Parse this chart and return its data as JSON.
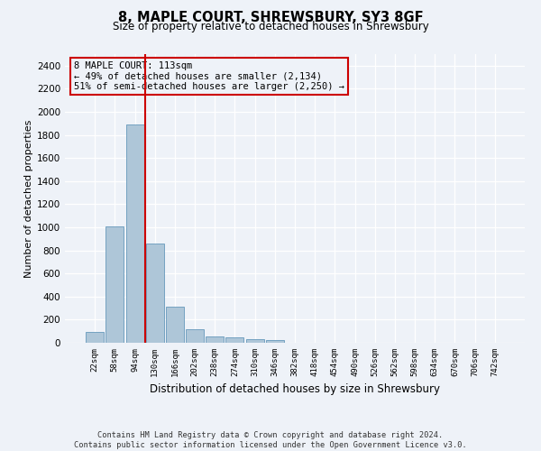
{
  "title": "8, MAPLE COURT, SHREWSBURY, SY3 8GF",
  "subtitle": "Size of property relative to detached houses in Shrewsbury",
  "xlabel": "Distribution of detached houses by size in Shrewsbury",
  "ylabel": "Number of detached properties",
  "bar_color": "#aec6d8",
  "bar_edge_color": "#6699bb",
  "background_color": "#eef2f8",
  "grid_color": "#ffffff",
  "tick_labels": [
    "22sqm",
    "58sqm",
    "94sqm",
    "130sqm",
    "166sqm",
    "202sqm",
    "238sqm",
    "274sqm",
    "310sqm",
    "346sqm",
    "382sqm",
    "418sqm",
    "454sqm",
    "490sqm",
    "526sqm",
    "562sqm",
    "598sqm",
    "634sqm",
    "670sqm",
    "706sqm",
    "742sqm"
  ],
  "bar_heights": [
    95,
    1010,
    1890,
    860,
    310,
    115,
    58,
    50,
    30,
    20,
    0,
    0,
    0,
    0,
    0,
    0,
    0,
    0,
    0,
    0,
    0
  ],
  "ylim": [
    0,
    2500
  ],
  "yticks": [
    0,
    200,
    400,
    600,
    800,
    1000,
    1200,
    1400,
    1600,
    1800,
    2000,
    2200,
    2400
  ],
  "vline_x": 2.52,
  "annotation_text": "8 MAPLE COURT: 113sqm\n← 49% of detached houses are smaller (2,134)\n51% of semi-detached houses are larger (2,250) →",
  "footer_line1": "Contains HM Land Registry data © Crown copyright and database right 2024.",
  "footer_line2": "Contains public sector information licensed under the Open Government Licence v3.0.",
  "annotation_box_color": "#cc0000",
  "vline_color": "#cc0000",
  "figsize": [
    6.0,
    5.0
  ],
  "dpi": 100
}
